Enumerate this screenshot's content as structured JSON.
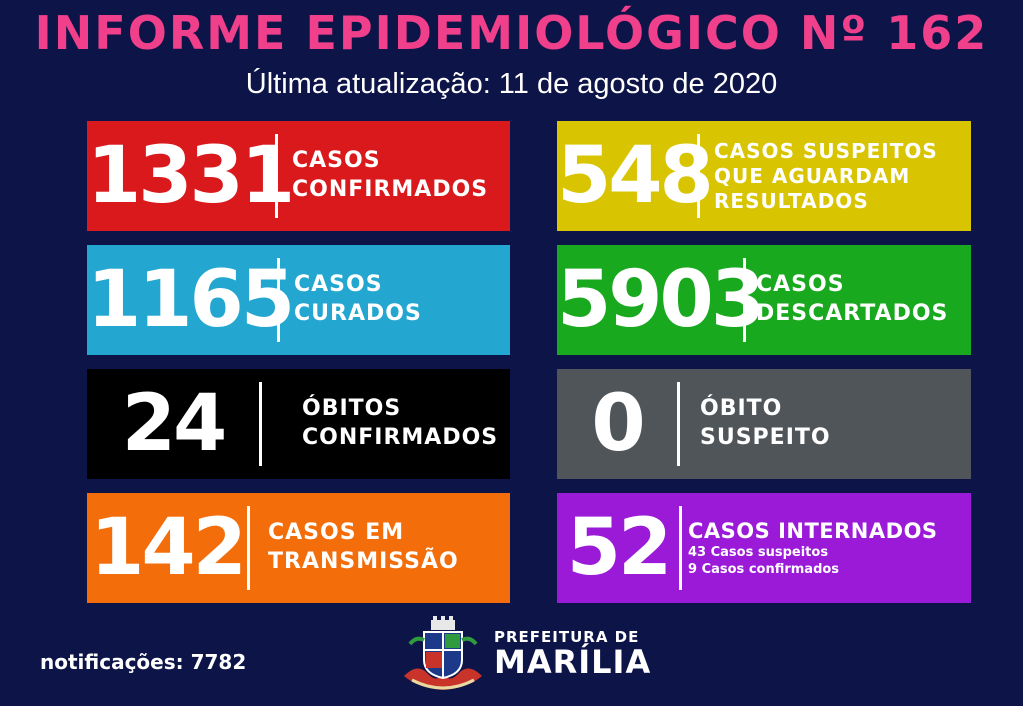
{
  "header": {
    "title": "INFORME EPIDEMIOLÓGICO Nº 162",
    "subtitle": "Última atualização: 11 de agosto de 2020"
  },
  "cards": [
    {
      "value": "1331",
      "line1": "CASOS",
      "line2": "CONFIRMADOS",
      "color": "#d9191c"
    },
    {
      "value": "548",
      "line1": "CASOS SUSPEITOS",
      "line2": "QUE AGUARDAM",
      "line3": "RESULTADOS",
      "color": "#d8c400"
    },
    {
      "value": "1165",
      "line1": "CASOS",
      "line2": "CURADOS",
      "color": "#23a6d0"
    },
    {
      "value": "5903",
      "line1": "CASOS",
      "line2": "DESCARTADOS",
      "color": "#19a91f"
    },
    {
      "value": "24",
      "line1": "ÓBITOS",
      "line2": "CONFIRMADOS",
      "color": "#000000"
    },
    {
      "value": "0",
      "line1": "ÓBITO",
      "line2": "SUSPEITO",
      "color": "#4f5559"
    },
    {
      "value": "142",
      "line1": "CASOS EM",
      "line2": "TRANSMISSÃO",
      "color": "#f36d0a"
    },
    {
      "value": "52",
      "line1": "CASOS INTERNADOS",
      "sub1": "43 Casos suspeitos",
      "sub2": "9 Casos confirmados",
      "color": "#9a1ad8"
    }
  ],
  "footer": {
    "notifications": "notificações: 7782",
    "logo_line1": "PREFEITURA DE",
    "logo_line2": "MARÍLIA"
  },
  "colors": {
    "background": "#0d1448",
    "title": "#f0408c"
  }
}
